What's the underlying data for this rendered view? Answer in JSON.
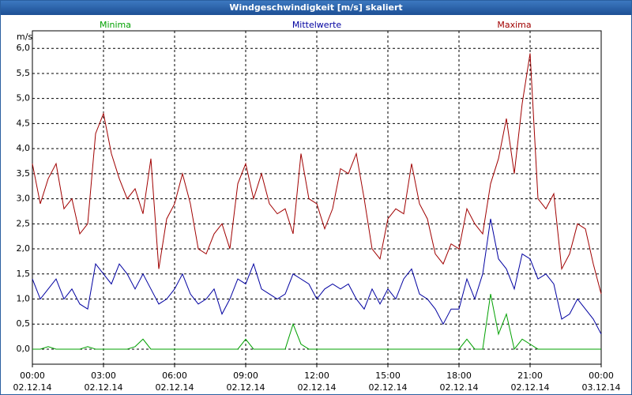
{
  "chart_data": {
    "type": "line",
    "title": "Windgeschwindigkeit [m/s] skaliert",
    "y_label": "m/s",
    "x": [
      0,
      20,
      40,
      60,
      80,
      100,
      120,
      140,
      160,
      180,
      200,
      220,
      240,
      260,
      280,
      300,
      320,
      340,
      360,
      380,
      400,
      420,
      440,
      460,
      480,
      500,
      520,
      540,
      560,
      580,
      600,
      620,
      640,
      660,
      680,
      700,
      720,
      740,
      760,
      780,
      800,
      820,
      840,
      860,
      880,
      900,
      920,
      940,
      960,
      980,
      1000,
      1020,
      1040,
      1060,
      1080,
      1100,
      1120,
      1140,
      1160,
      1180,
      1200,
      1220,
      1240,
      1260,
      1280,
      1300,
      1320,
      1340,
      1360,
      1380,
      1400,
      1420,
      1440
    ],
    "series": [
      {
        "name": "Minima",
        "color": "#00a000",
        "values": [
          0,
          0,
          0.05,
          0,
          0,
          0,
          0,
          0.05,
          0,
          0,
          0,
          0,
          0,
          0.05,
          0.2,
          0,
          0,
          0,
          0,
          0,
          0,
          0,
          0,
          0,
          0,
          0,
          0,
          0.2,
          0,
          0,
          0,
          0,
          0,
          0.5,
          0.1,
          0,
          0,
          0,
          0,
          0,
          0,
          0,
          0,
          0,
          0,
          0,
          0,
          0,
          0,
          0,
          0,
          0,
          0,
          0,
          0,
          0.2,
          0,
          0,
          1.1,
          0.3,
          0.7,
          0,
          0.2,
          0.1,
          0,
          0,
          0,
          0,
          0,
          0,
          0,
          0,
          0
        ]
      },
      {
        "name": "Mittelwerte",
        "color": "#0000a0",
        "values": [
          1.4,
          1.0,
          1.2,
          1.4,
          1.0,
          1.2,
          0.9,
          0.8,
          1.7,
          1.5,
          1.3,
          1.7,
          1.5,
          1.2,
          1.5,
          1.2,
          0.9,
          1.0,
          1.2,
          1.5,
          1.1,
          0.9,
          1.0,
          1.2,
          0.7,
          1.0,
          1.4,
          1.3,
          1.7,
          1.2,
          1.1,
          1.0,
          1.1,
          1.5,
          1.4,
          1.3,
          1.0,
          1.2,
          1.3,
          1.2,
          1.3,
          1.0,
          0.8,
          1.2,
          0.9,
          1.2,
          1.0,
          1.4,
          1.6,
          1.1,
          1.0,
          0.8,
          0.5,
          0.8,
          0.8,
          1.4,
          1.0,
          1.5,
          2.6,
          1.8,
          1.6,
          1.2,
          1.9,
          1.8,
          1.4,
          1.5,
          1.3,
          0.6,
          0.7,
          1.0,
          0.8,
          0.6,
          0.3
        ]
      },
      {
        "name": "Maxima",
        "color": "#a00000",
        "values": [
          3.7,
          2.9,
          3.4,
          3.7,
          2.8,
          3.0,
          2.3,
          2.5,
          4.3,
          4.7,
          3.9,
          3.4,
          3.0,
          3.2,
          2.7,
          3.8,
          1.6,
          2.6,
          2.9,
          3.5,
          2.9,
          2.0,
          1.9,
          2.3,
          2.5,
          2.0,
          3.3,
          3.7,
          3.0,
          3.5,
          2.9,
          2.7,
          2.8,
          2.3,
          3.9,
          3.0,
          2.9,
          2.4,
          2.8,
          3.6,
          3.5,
          3.9,
          3.0,
          2.0,
          1.8,
          2.6,
          2.8,
          2.7,
          3.7,
          2.9,
          2.6,
          1.9,
          1.7,
          2.1,
          2.0,
          2.8,
          2.5,
          2.3,
          3.3,
          3.8,
          4.6,
          3.5,
          4.9,
          5.9,
          3.0,
          2.8,
          3.1,
          1.6,
          1.9,
          2.5,
          2.4,
          1.7,
          1.1
        ]
      }
    ],
    "xlim": [
      0,
      1440
    ],
    "xticks": [
      {
        "value": 0,
        "label": "00:00",
        "date": "02.12.14"
      },
      {
        "value": 180,
        "label": "03:00",
        "date": "02.12.14"
      },
      {
        "value": 360,
        "label": "06:00",
        "date": "02.12.14"
      },
      {
        "value": 540,
        "label": "09:00",
        "date": "02.12.14"
      },
      {
        "value": 720,
        "label": "12:00",
        "date": "02.12.14"
      },
      {
        "value": 900,
        "label": "15:00",
        "date": "02.12.14"
      },
      {
        "value": 1080,
        "label": "18:00",
        "date": "02.12.14"
      },
      {
        "value": 1260,
        "label": "21:00",
        "date": "02.12.14"
      },
      {
        "value": 1440,
        "label": "00:00",
        "date": "03.12.14"
      }
    ],
    "ylim": [
      -0.3,
      6.35
    ],
    "yticks": [
      {
        "value": 0,
        "label": "0,0"
      },
      {
        "value": 0.5,
        "label": "0,5"
      },
      {
        "value": 1,
        "label": "1,0"
      },
      {
        "value": 1.5,
        "label": "1,5"
      },
      {
        "value": 2,
        "label": "2,0"
      },
      {
        "value": 2.5,
        "label": "2,5"
      },
      {
        "value": 3,
        "label": "3,0"
      },
      {
        "value": 3.5,
        "label": "3,5"
      },
      {
        "value": 4,
        "label": "4,0"
      },
      {
        "value": 4.5,
        "label": "4,5"
      },
      {
        "value": 5,
        "label": "5,0"
      },
      {
        "value": 5.5,
        "label": "5,5"
      },
      {
        "value": 6,
        "label": "6,0"
      }
    ],
    "grid": true
  }
}
